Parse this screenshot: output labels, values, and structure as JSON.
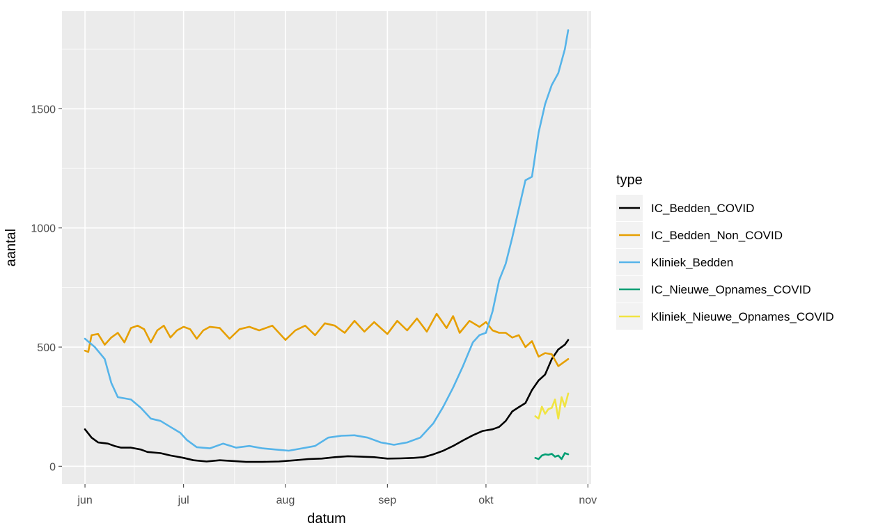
{
  "chart_data": {
    "type": "line",
    "xlabel": "datum",
    "ylabel": "aantal",
    "legend_title": "type",
    "legend_position": "right",
    "grid": true,
    "x_ticks": [
      "jun",
      "jul",
      "aug",
      "sep",
      "okt",
      "nov"
    ],
    "x_tick_dates": [
      "2020-06-01",
      "2020-07-01",
      "2020-08-01",
      "2020-09-01",
      "2020-10-01",
      "2020-11-01"
    ],
    "xlim": [
      "2020-05-25",
      "2020-11-02"
    ],
    "y_ticks": [
      "0",
      "500",
      "1000",
      "1500"
    ],
    "y_tick_values": [
      0,
      500,
      1000,
      1500
    ],
    "ylim": [
      -75,
      1910
    ],
    "series": [
      {
        "name": "IC_Bedden_COVID",
        "color": "#000000",
        "points": [
          [
            "2020-06-01",
            155
          ],
          [
            "2020-06-03",
            120
          ],
          [
            "2020-06-05",
            100
          ],
          [
            "2020-06-08",
            95
          ],
          [
            "2020-06-10",
            85
          ],
          [
            "2020-06-12",
            78
          ],
          [
            "2020-06-15",
            78
          ],
          [
            "2020-06-18",
            70
          ],
          [
            "2020-06-20",
            60
          ],
          [
            "2020-06-24",
            55
          ],
          [
            "2020-06-27",
            45
          ],
          [
            "2020-07-01",
            35
          ],
          [
            "2020-07-04",
            25
          ],
          [
            "2020-07-08",
            20
          ],
          [
            "2020-07-12",
            25
          ],
          [
            "2020-07-16",
            22
          ],
          [
            "2020-07-20",
            18
          ],
          [
            "2020-07-25",
            18
          ],
          [
            "2020-07-30",
            20
          ],
          [
            "2020-08-04",
            25
          ],
          [
            "2020-08-08",
            30
          ],
          [
            "2020-08-12",
            32
          ],
          [
            "2020-08-16",
            38
          ],
          [
            "2020-08-20",
            42
          ],
          [
            "2020-08-24",
            40
          ],
          [
            "2020-08-28",
            38
          ],
          [
            "2020-09-01",
            32
          ],
          [
            "2020-09-05",
            33
          ],
          [
            "2020-09-09",
            35
          ],
          [
            "2020-09-12",
            38
          ],
          [
            "2020-09-15",
            50
          ],
          [
            "2020-09-18",
            65
          ],
          [
            "2020-09-21",
            85
          ],
          [
            "2020-09-24",
            108
          ],
          [
            "2020-09-27",
            130
          ],
          [
            "2020-09-30",
            148
          ],
          [
            "2020-10-03",
            155
          ],
          [
            "2020-10-05",
            165
          ],
          [
            "2020-10-07",
            190
          ],
          [
            "2020-10-09",
            230
          ],
          [
            "2020-10-11",
            248
          ],
          [
            "2020-10-13",
            265
          ],
          [
            "2020-10-15",
            320
          ],
          [
            "2020-10-17",
            360
          ],
          [
            "2020-10-19",
            385
          ],
          [
            "2020-10-21",
            450
          ],
          [
            "2020-10-23",
            490
          ],
          [
            "2020-10-25",
            510
          ],
          [
            "2020-10-26",
            530
          ]
        ]
      },
      {
        "name": "IC_Bedden_Non_COVID",
        "color": "#E69F00",
        "points": [
          [
            "2020-06-01",
            485
          ],
          [
            "2020-06-02",
            480
          ],
          [
            "2020-06-03",
            550
          ],
          [
            "2020-06-05",
            555
          ],
          [
            "2020-06-07",
            510
          ],
          [
            "2020-06-09",
            540
          ],
          [
            "2020-06-11",
            560
          ],
          [
            "2020-06-13",
            520
          ],
          [
            "2020-06-15",
            580
          ],
          [
            "2020-06-17",
            590
          ],
          [
            "2020-06-19",
            575
          ],
          [
            "2020-06-21",
            520
          ],
          [
            "2020-06-23",
            570
          ],
          [
            "2020-06-25",
            590
          ],
          [
            "2020-06-27",
            540
          ],
          [
            "2020-06-29",
            570
          ],
          [
            "2020-07-01",
            585
          ],
          [
            "2020-07-03",
            575
          ],
          [
            "2020-07-05",
            535
          ],
          [
            "2020-07-07",
            570
          ],
          [
            "2020-07-09",
            585
          ],
          [
            "2020-07-12",
            580
          ],
          [
            "2020-07-15",
            535
          ],
          [
            "2020-07-18",
            575
          ],
          [
            "2020-07-21",
            585
          ],
          [
            "2020-07-24",
            570
          ],
          [
            "2020-07-28",
            590
          ],
          [
            "2020-08-01",
            530
          ],
          [
            "2020-08-04",
            570
          ],
          [
            "2020-08-07",
            590
          ],
          [
            "2020-08-10",
            550
          ],
          [
            "2020-08-13",
            600
          ],
          [
            "2020-08-16",
            590
          ],
          [
            "2020-08-19",
            560
          ],
          [
            "2020-08-22",
            610
          ],
          [
            "2020-08-25",
            565
          ],
          [
            "2020-08-28",
            605
          ],
          [
            "2020-09-01",
            555
          ],
          [
            "2020-09-04",
            610
          ],
          [
            "2020-09-07",
            570
          ],
          [
            "2020-09-10",
            620
          ],
          [
            "2020-09-13",
            565
          ],
          [
            "2020-09-16",
            640
          ],
          [
            "2020-09-19",
            580
          ],
          [
            "2020-09-21",
            630
          ],
          [
            "2020-09-23",
            560
          ],
          [
            "2020-09-26",
            610
          ],
          [
            "2020-09-29",
            585
          ],
          [
            "2020-10-01",
            605
          ],
          [
            "2020-10-03",
            570
          ],
          [
            "2020-10-05",
            560
          ],
          [
            "2020-10-07",
            560
          ],
          [
            "2020-10-09",
            540
          ],
          [
            "2020-10-11",
            550
          ],
          [
            "2020-10-13",
            500
          ],
          [
            "2020-10-15",
            525
          ],
          [
            "2020-10-17",
            460
          ],
          [
            "2020-10-19",
            475
          ],
          [
            "2020-10-21",
            470
          ],
          [
            "2020-10-23",
            420
          ],
          [
            "2020-10-26",
            450
          ]
        ]
      },
      {
        "name": "Kliniek_Bedden",
        "color": "#56B4E9",
        "points": [
          [
            "2020-06-01",
            535
          ],
          [
            "2020-06-04",
            500
          ],
          [
            "2020-06-07",
            450
          ],
          [
            "2020-06-09",
            350
          ],
          [
            "2020-06-11",
            290
          ],
          [
            "2020-06-15",
            280
          ],
          [
            "2020-06-18",
            245
          ],
          [
            "2020-06-21",
            200
          ],
          [
            "2020-06-24",
            190
          ],
          [
            "2020-06-27",
            165
          ],
          [
            "2020-06-30",
            140
          ],
          [
            "2020-07-02",
            110
          ],
          [
            "2020-07-05",
            80
          ],
          [
            "2020-07-09",
            75
          ],
          [
            "2020-07-13",
            95
          ],
          [
            "2020-07-17",
            78
          ],
          [
            "2020-07-21",
            85
          ],
          [
            "2020-07-25",
            75
          ],
          [
            "2020-07-29",
            70
          ],
          [
            "2020-08-02",
            65
          ],
          [
            "2020-08-06",
            75
          ],
          [
            "2020-08-10",
            85
          ],
          [
            "2020-08-14",
            120
          ],
          [
            "2020-08-18",
            128
          ],
          [
            "2020-08-22",
            130
          ],
          [
            "2020-08-26",
            120
          ],
          [
            "2020-08-30",
            100
          ],
          [
            "2020-09-03",
            90
          ],
          [
            "2020-09-07",
            100
          ],
          [
            "2020-09-11",
            120
          ],
          [
            "2020-09-15",
            180
          ],
          [
            "2020-09-18",
            250
          ],
          [
            "2020-09-21",
            330
          ],
          [
            "2020-09-24",
            420
          ],
          [
            "2020-09-27",
            520
          ],
          [
            "2020-09-29",
            550
          ],
          [
            "2020-10-01",
            560
          ],
          [
            "2020-10-03",
            650
          ],
          [
            "2020-10-05",
            780
          ],
          [
            "2020-10-07",
            850
          ],
          [
            "2020-10-09",
            960
          ],
          [
            "2020-10-11",
            1080
          ],
          [
            "2020-10-13",
            1200
          ],
          [
            "2020-10-15",
            1215
          ],
          [
            "2020-10-17",
            1400
          ],
          [
            "2020-10-19",
            1520
          ],
          [
            "2020-10-21",
            1600
          ],
          [
            "2020-10-23",
            1650
          ],
          [
            "2020-10-25",
            1750
          ],
          [
            "2020-10-26",
            1830
          ]
        ]
      },
      {
        "name": "IC_Nieuwe_Opnames_COVID",
        "color": "#009E73",
        "points": [
          [
            "2020-10-16",
            35
          ],
          [
            "2020-10-17",
            30
          ],
          [
            "2020-10-18",
            45
          ],
          [
            "2020-10-19",
            50
          ],
          [
            "2020-10-20",
            48
          ],
          [
            "2020-10-21",
            52
          ],
          [
            "2020-10-22",
            40
          ],
          [
            "2020-10-23",
            45
          ],
          [
            "2020-10-24",
            30
          ],
          [
            "2020-10-25",
            55
          ],
          [
            "2020-10-26",
            50
          ]
        ]
      },
      {
        "name": "Kliniek_Nieuwe_Opnames_COVID",
        "color": "#F0E442",
        "points": [
          [
            "2020-10-16",
            210
          ],
          [
            "2020-10-17",
            200
          ],
          [
            "2020-10-18",
            250
          ],
          [
            "2020-10-19",
            220
          ],
          [
            "2020-10-20",
            240
          ],
          [
            "2020-10-21",
            245
          ],
          [
            "2020-10-22",
            280
          ],
          [
            "2020-10-23",
            200
          ],
          [
            "2020-10-24",
            290
          ],
          [
            "2020-10-25",
            250
          ],
          [
            "2020-10-26",
            305
          ]
        ]
      }
    ]
  }
}
